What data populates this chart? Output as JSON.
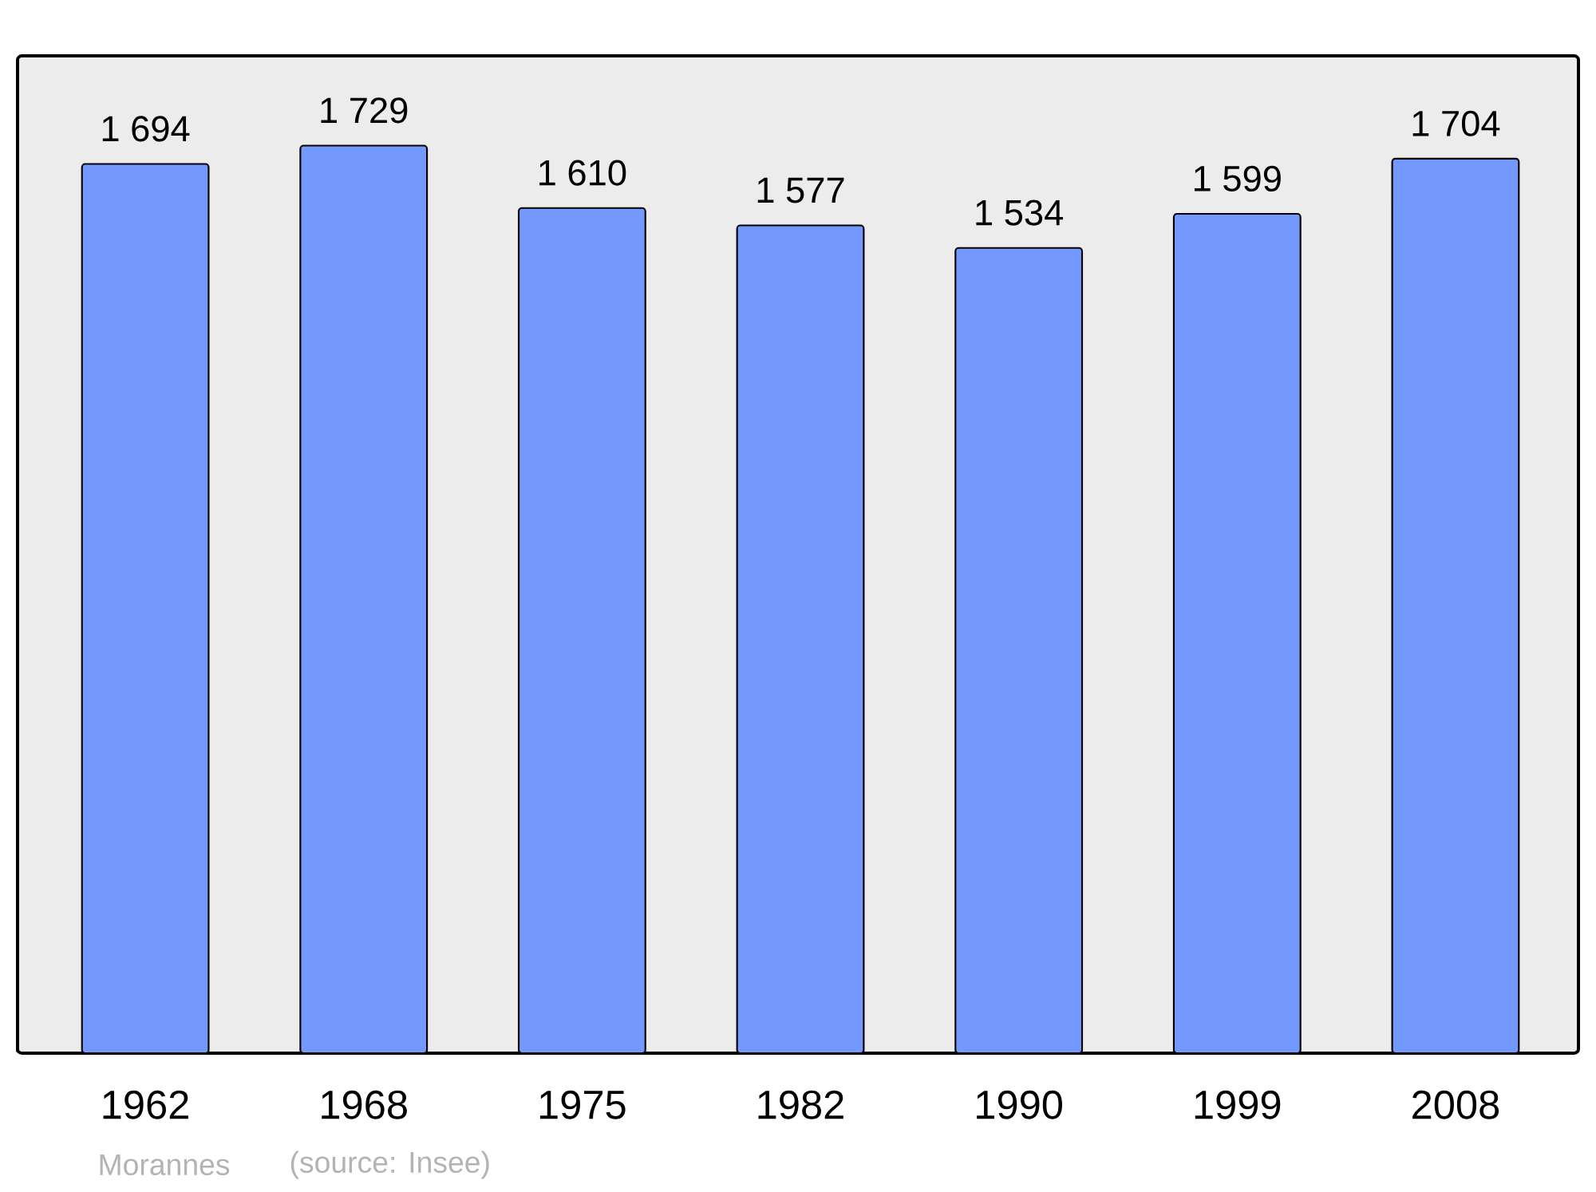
{
  "chart_data": {
    "type": "bar",
    "categories": [
      "1962",
      "1968",
      "1975",
      "1982",
      "1990",
      "1999",
      "2008"
    ],
    "values": [
      1694,
      1729,
      1610,
      1577,
      1534,
      1599,
      1704
    ],
    "value_labels": [
      "1 694",
      "1 729",
      "1 610",
      "1 577",
      "1 534",
      "1 599",
      "1 704"
    ],
    "color": "#7399ff",
    "ylim": [
      0,
      1900
    ],
    "tick_labels": "x",
    "annotations": [
      "Morannes",
      "(source: Insee)"
    ]
  }
}
